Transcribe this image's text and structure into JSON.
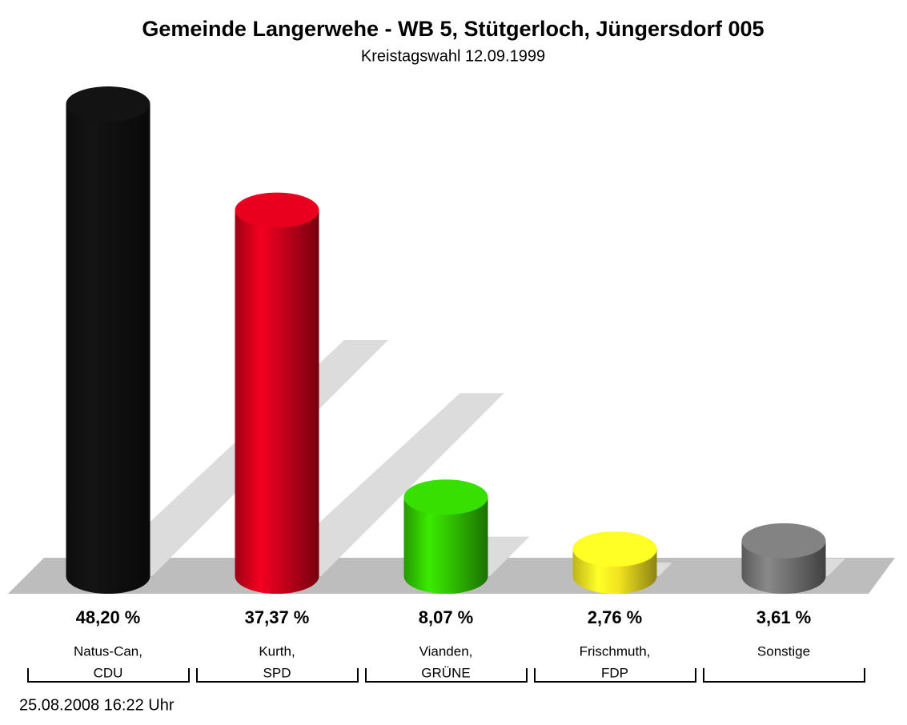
{
  "chart_data": {
    "type": "bar",
    "title": "Gemeinde Langerwehe - WB 5, Stütgerloch, Jüngersdorf 005",
    "subtitle": "Kreistagswahl 12.09.1999",
    "categories": [
      [
        "Natus-Can,",
        "CDU"
      ],
      [
        "Kurth,",
        "SPD"
      ],
      [
        "Vianden,",
        "GRÜNE"
      ],
      [
        "Frischmuth,",
        "FDP"
      ],
      [
        "Sonstige"
      ]
    ],
    "values": [
      48.2,
      37.37,
      8.07,
      2.76,
      3.61
    ],
    "value_labels": [
      "48,20 %",
      "37,37 %",
      "8,07 %",
      "2,76 %",
      "3,61 %"
    ],
    "colors": [
      "#111111",
      "#d4001c",
      "#33cc00",
      "#ffee22",
      "#777777"
    ],
    "footer": "25.08.2008 16:22 Uhr"
  }
}
